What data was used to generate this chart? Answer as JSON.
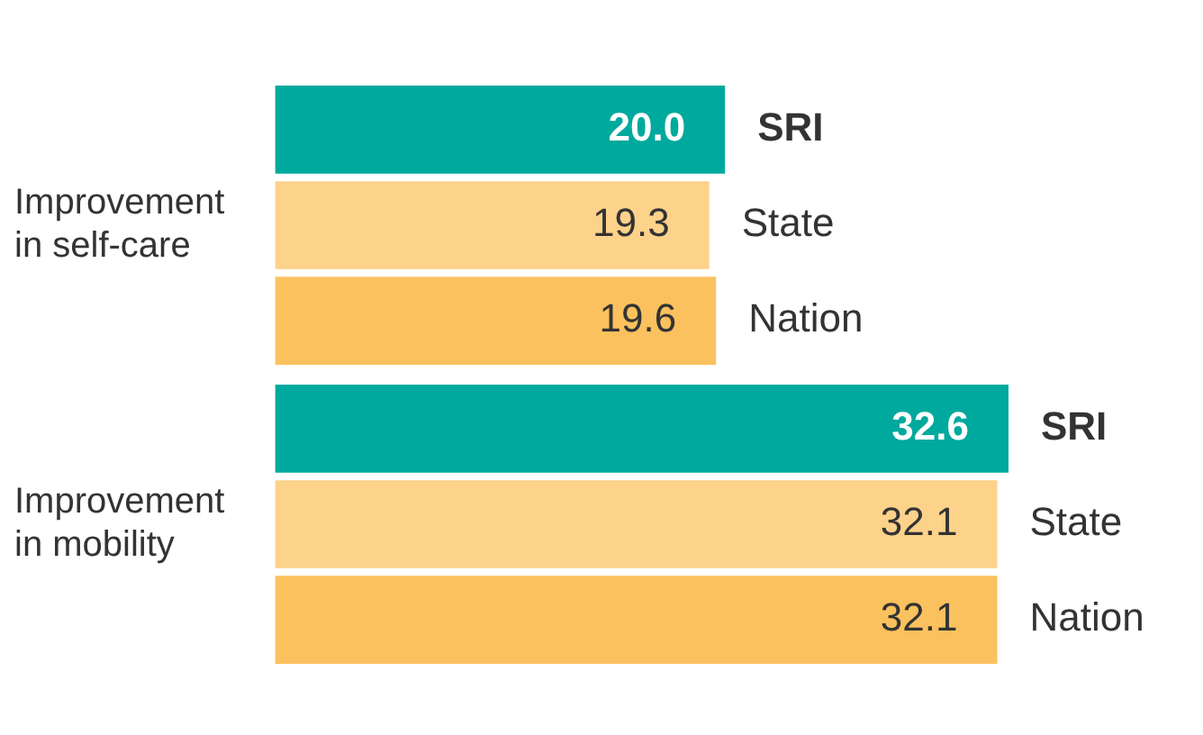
{
  "chart_data": {
    "type": "bar",
    "orientation": "horizontal",
    "categories": [
      "Improvement\nin self-care",
      "Improvement\nin mobility"
    ],
    "series": [
      {
        "name": "SRI",
        "color": "#00a99d",
        "values": [
          20.0,
          32.6
        ],
        "value_labels": [
          "20.0",
          "32.6"
        ]
      },
      {
        "name": "State",
        "color": "#fdd28a",
        "values": [
          19.3,
          32.1
        ],
        "value_labels": [
          "19.3",
          "32.1"
        ]
      },
      {
        "name": "Nation",
        "color": "#fbc15e",
        "values": [
          19.6,
          32.1
        ],
        "value_labels": [
          "19.6",
          "32.1"
        ]
      }
    ],
    "legend": false
  }
}
